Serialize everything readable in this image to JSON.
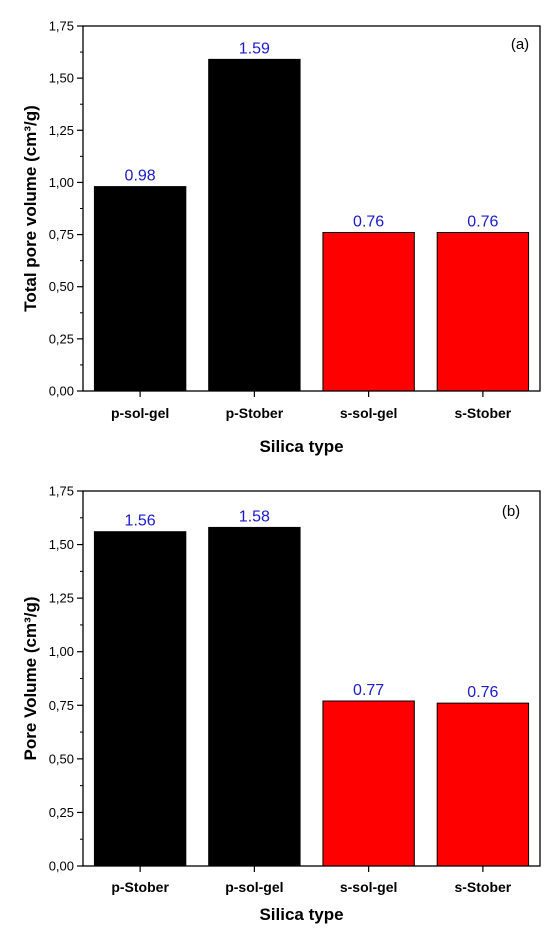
{
  "chart_data": [
    {
      "type": "bar",
      "panel": "(a)",
      "categories": [
        "p-sol-gel",
        "p-Stober",
        "s-sol-gel",
        "s-Stober"
      ],
      "values": [
        0.98,
        1.59,
        0.76,
        0.76
      ],
      "value_labels": [
        "0.98",
        "1.59",
        "0.76",
        "0.76"
      ],
      "bar_colors": [
        "#000000",
        "#000000",
        "#ff0000",
        "#ff0000"
      ],
      "xlabel": "Silica type",
      "ylabel": "Total pore volume (cm³/g)",
      "ylim": [
        0,
        1.75
      ],
      "yticks": [
        0,
        0.25,
        0.5,
        0.75,
        1.0,
        1.25,
        1.5,
        1.75
      ],
      "ytick_labels": [
        "0,00",
        "0,25",
        "0,50",
        "0,75",
        "1,00",
        "1,25",
        "1,50",
        "1,75"
      ],
      "grid": false
    },
    {
      "type": "bar",
      "panel": "(b)",
      "categories": [
        "p-Stober",
        "p-sol-gel",
        "s-sol-gel",
        "s-Stober"
      ],
      "values": [
        1.56,
        1.58,
        0.77,
        0.76
      ],
      "value_labels": [
        "1.56",
        "1.58",
        "0.77",
        "0.76"
      ],
      "bar_colors": [
        "#000000",
        "#000000",
        "#ff0000",
        "#ff0000"
      ],
      "xlabel": "Silica type",
      "ylabel": "Pore Volume (cm³/g)",
      "ylim": [
        0,
        1.75
      ],
      "yticks": [
        0,
        0.25,
        0.5,
        0.75,
        1.0,
        1.25,
        1.5,
        1.75
      ],
      "ytick_labels": [
        "0,00",
        "0,25",
        "0,50",
        "0,75",
        "1,00",
        "1,25",
        "1,50",
        "1,75"
      ],
      "grid": false
    }
  ],
  "colors": {
    "value_label": "#1a1acc",
    "axis": "#000000"
  }
}
